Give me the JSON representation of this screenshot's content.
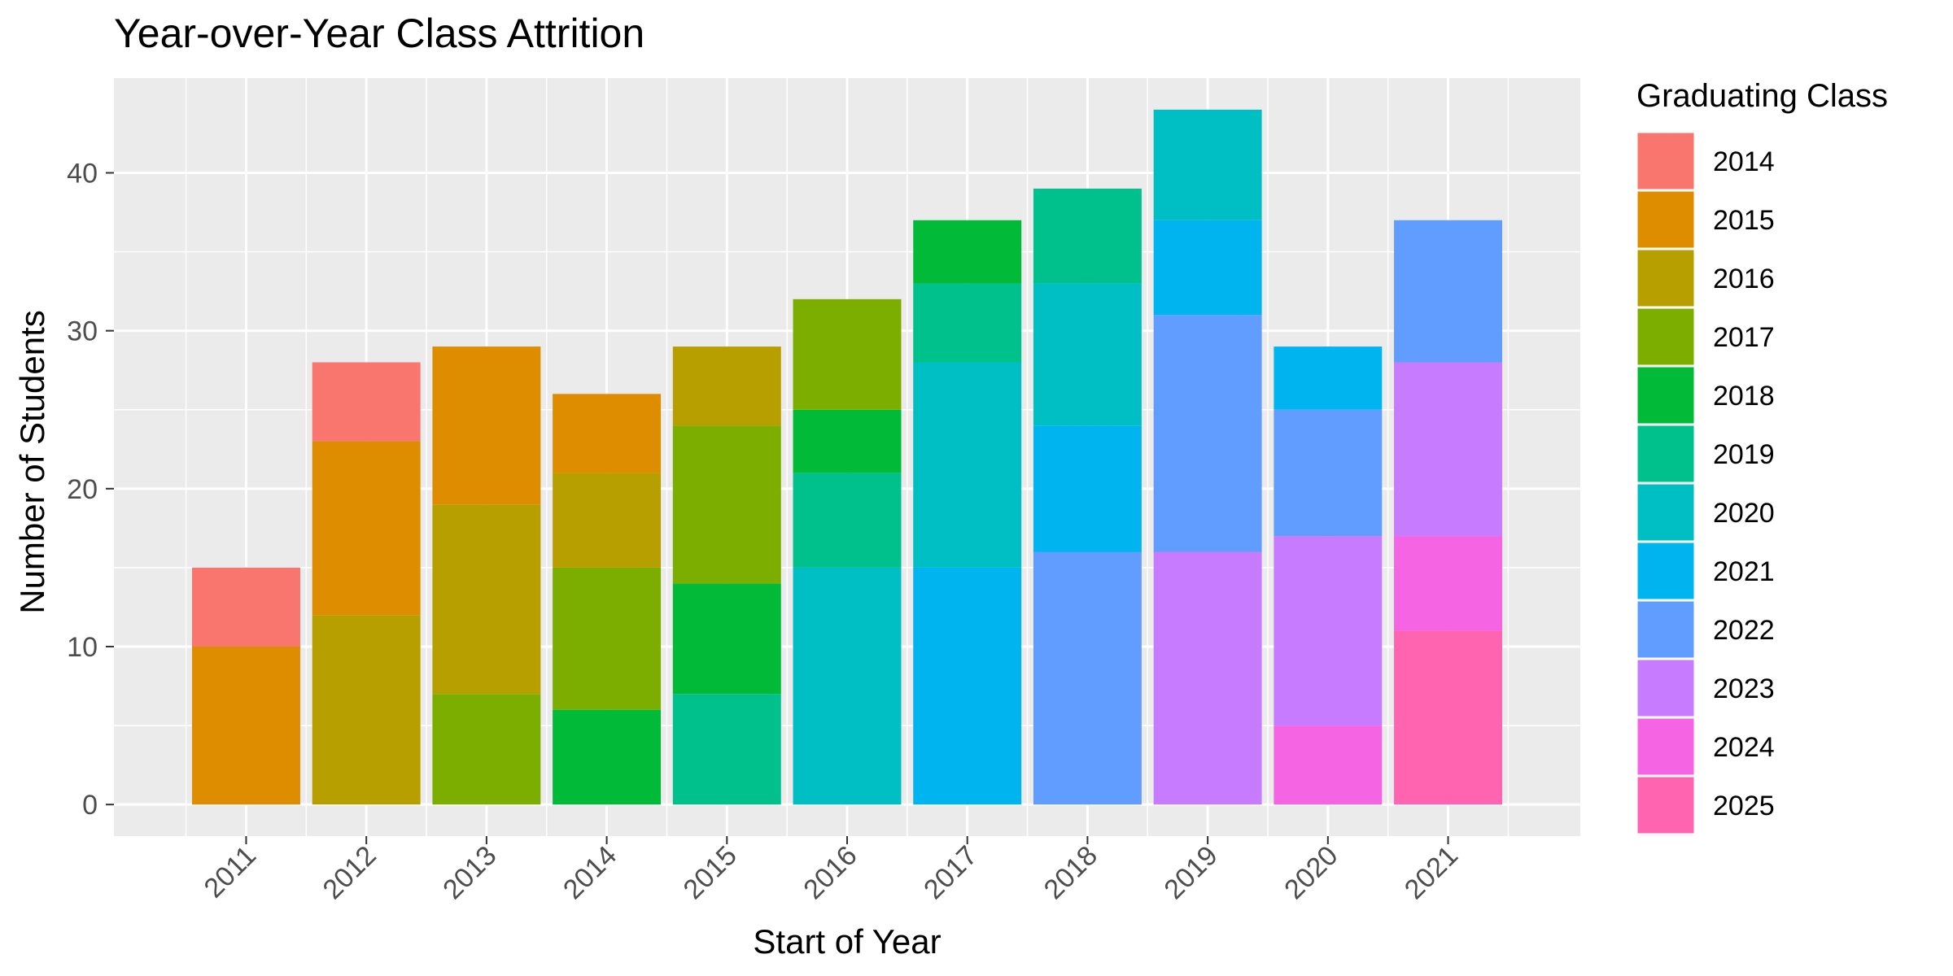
{
  "chart_data": {
    "type": "bar",
    "stacked": true,
    "title": "Year-over-Year Class Attrition",
    "xlabel": "Start of Year",
    "ylabel": "Number of Students",
    "categories": [
      "2011",
      "2012",
      "2013",
      "2014",
      "2015",
      "2016",
      "2017",
      "2018",
      "2019",
      "2020",
      "2021"
    ],
    "yticks": [
      0,
      10,
      20,
      30,
      40
    ],
    "ylim": [
      -2,
      46
    ],
    "grid": true,
    "legend": {
      "title": "Graduating Class",
      "position": "right"
    },
    "series": [
      {
        "name": "2014",
        "color": "#F8766D",
        "values": [
          5,
          5,
          0,
          0,
          0,
          0,
          0,
          0,
          0,
          0,
          0
        ]
      },
      {
        "name": "2015",
        "color": "#DE8C00",
        "values": [
          10,
          11,
          10,
          5,
          0,
          0,
          0,
          0,
          0,
          0,
          0
        ]
      },
      {
        "name": "2016",
        "color": "#B79F00",
        "values": [
          0,
          12,
          12,
          6,
          5,
          0,
          0,
          0,
          0,
          0,
          0
        ]
      },
      {
        "name": "2017",
        "color": "#7CAE00",
        "values": [
          0,
          0,
          7,
          9,
          10,
          7,
          0,
          0,
          0,
          0,
          0
        ]
      },
      {
        "name": "2018",
        "color": "#00BA38",
        "values": [
          0,
          0,
          0,
          6,
          7,
          4,
          4,
          0,
          0,
          0,
          0
        ]
      },
      {
        "name": "2019",
        "color": "#00C08B",
        "values": [
          0,
          0,
          0,
          0,
          7,
          6,
          5,
          6,
          0,
          0,
          0
        ]
      },
      {
        "name": "2020",
        "color": "#00BFC4",
        "values": [
          0,
          0,
          0,
          0,
          0,
          15,
          13,
          9,
          7,
          0,
          0
        ]
      },
      {
        "name": "2021",
        "color": "#00B4F0",
        "values": [
          0,
          0,
          0,
          0,
          0,
          0,
          15,
          8,
          6,
          4,
          0
        ]
      },
      {
        "name": "2022",
        "color": "#619CFF",
        "values": [
          0,
          0,
          0,
          0,
          0,
          0,
          0,
          16,
          15,
          8,
          9
        ]
      },
      {
        "name": "2023",
        "color": "#C77CFF",
        "values": [
          0,
          0,
          0,
          0,
          0,
          0,
          0,
          0,
          16,
          12,
          11
        ]
      },
      {
        "name": "2024",
        "color": "#F564E3",
        "values": [
          0,
          0,
          0,
          0,
          0,
          0,
          0,
          0,
          0,
          5,
          6
        ]
      },
      {
        "name": "2025",
        "color": "#FF64B0",
        "values": [
          0,
          0,
          0,
          0,
          0,
          0,
          0,
          0,
          0,
          0,
          11
        ]
      }
    ],
    "colors": {
      "panel_background": "#EBEBEB",
      "grid_major": "#FFFFFF",
      "tick_text": "#4D4D4D"
    }
  }
}
